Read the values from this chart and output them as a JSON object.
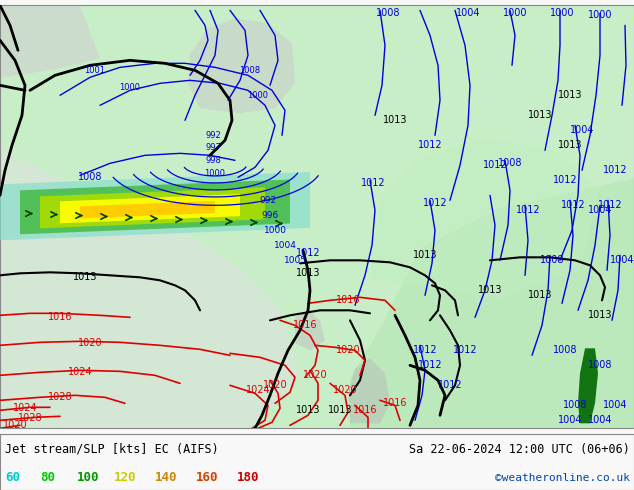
{
  "title_left": "Jet stream/SLP [kts] EC (AIFS)",
  "title_right": "Sa 22-06-2024 12:00 UTC (06+06)",
  "credit": "©weatheronline.co.uk",
  "legend_values": [
    60,
    80,
    100,
    120,
    140,
    160,
    180
  ],
  "legend_colors": [
    "#00cccc",
    "#00cc00",
    "#009900",
    "#cccc00",
    "#cc8800",
    "#cc4400",
    "#cc0000"
  ],
  "bg_color_land": "#f0f0f0",
  "bg_color_sea": "#c8eec8",
  "figsize": [
    6.34,
    4.9
  ],
  "dpi": 100,
  "bottom_strip_color": "#f8f8f8",
  "title_fontsize": 8.5,
  "credit_fontsize": 8,
  "legend_fontsize": 9,
  "blue_contour_color": "#0000dd",
  "red_contour_color": "#dd0000",
  "black_contour_color": "#000000",
  "green_jet_color": "#006600"
}
